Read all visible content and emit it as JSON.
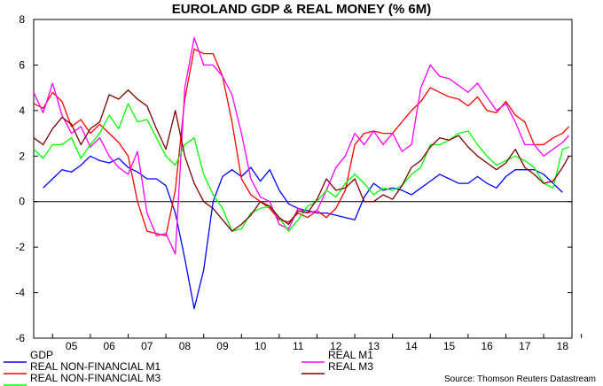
{
  "chart_data": {
    "type": "line",
    "title": "EUROLAND GDP & REAL MONEY (% 6M)",
    "xlabel": "",
    "ylabel": "",
    "ylim": [
      -6,
      8
    ],
    "yticks": [
      -6,
      -4,
      -2,
      0,
      2,
      4,
      6,
      8
    ],
    "xlim": [
      2004.5,
      2018.75
    ],
    "x_tick_labels": [
      "05",
      "06",
      "07",
      "08",
      "09",
      "10",
      "11",
      "12",
      "13",
      "14",
      "15",
      "16",
      "17",
      "18"
    ],
    "grid": false,
    "legend_position": "bottom",
    "source": "Source: Thomson Reuters Datastream",
    "series": [
      {
        "name": "GDP",
        "color": "#0000ff",
        "x": [
          2004.75,
          2005.0,
          2005.25,
          2005.5,
          2005.75,
          2006.0,
          2006.25,
          2006.5,
          2006.75,
          2007.0,
          2007.25,
          2007.5,
          2007.75,
          2008.0,
          2008.25,
          2008.5,
          2008.75,
          2009.0,
          2009.25,
          2009.5,
          2009.75,
          2010.0,
          2010.25,
          2010.5,
          2010.75,
          2011.0,
          2011.25,
          2011.5,
          2011.75,
          2012.0,
          2012.25,
          2012.5,
          2012.75,
          2013.0,
          2013.25,
          2013.5,
          2013.75,
          2014.0,
          2014.25,
          2014.5,
          2014.75,
          2015.0,
          2015.25,
          2015.5,
          2015.75,
          2016.0,
          2016.25,
          2016.5,
          2016.75,
          2017.0,
          2017.25,
          2017.5,
          2017.75,
          2018.0,
          2018.25,
          2018.5
        ],
        "y": [
          0.6,
          1.0,
          1.4,
          1.3,
          1.6,
          2.0,
          1.8,
          1.7,
          1.9,
          1.5,
          1.3,
          1.0,
          1.0,
          0.7,
          -0.5,
          -2.5,
          -4.7,
          -3.0,
          0.0,
          1.1,
          1.4,
          1.1,
          1.5,
          0.9,
          1.4,
          0.5,
          -0.1,
          -0.3,
          -0.4,
          -0.5,
          -0.5,
          -0.6,
          -0.7,
          -0.8,
          0.2,
          0.8,
          0.5,
          0.6,
          0.5,
          0.3,
          0.6,
          0.9,
          1.2,
          1.0,
          0.8,
          0.8,
          1.1,
          0.8,
          0.6,
          1.1,
          1.4,
          1.4,
          1.4,
          1.2,
          0.8,
          0.4
        ]
      },
      {
        "name": "REAL NON-FINANCIAL M1",
        "color": "#ff0000",
        "x": [
          2004.5,
          2004.75,
          2005.0,
          2005.25,
          2005.5,
          2005.75,
          2006.0,
          2006.25,
          2006.5,
          2006.75,
          2007.0,
          2007.25,
          2007.5,
          2007.75,
          2008.0,
          2008.25,
          2008.5,
          2008.75,
          2009.0,
          2009.25,
          2009.5,
          2009.75,
          2010.0,
          2010.25,
          2010.5,
          2010.75,
          2011.0,
          2011.25,
          2011.5,
          2011.75,
          2012.0,
          2012.25,
          2012.5,
          2012.75,
          2013.0,
          2013.25,
          2013.5,
          2013.75,
          2014.0,
          2014.25,
          2014.5,
          2014.75,
          2015.0,
          2015.25,
          2015.5,
          2015.75,
          2016.0,
          2016.25,
          2016.5,
          2016.75,
          2017.0,
          2017.25,
          2017.5,
          2017.75,
          2018.0,
          2018.25,
          2018.5,
          2018.67
        ],
        "y": [
          4.3,
          4.1,
          4.8,
          4.4,
          3.3,
          3.6,
          3.0,
          3.4,
          3.0,
          2.6,
          2.0,
          0.0,
          -1.3,
          -1.4,
          -1.5,
          0.5,
          4.5,
          6.7,
          6.5,
          6.5,
          5.5,
          3.5,
          1.0,
          0.3,
          0.0,
          -0.3,
          -0.8,
          -0.9,
          -0.5,
          -0.7,
          -0.4,
          -0.7,
          -0.3,
          0.5,
          2.5,
          3.0,
          3.1,
          3.0,
          3.0,
          3.5,
          4.0,
          4.4,
          5.0,
          4.8,
          4.6,
          4.5,
          4.2,
          4.6,
          4.0,
          3.9,
          4.4,
          3.8,
          3.5,
          2.5,
          2.5,
          2.8,
          3.0,
          3.3
        ]
      },
      {
        "name": "REAL M1",
        "color": "#ff00ff",
        "x": [
          2004.5,
          2004.75,
          2005.0,
          2005.25,
          2005.5,
          2005.75,
          2006.0,
          2006.25,
          2006.5,
          2006.75,
          2007.0,
          2007.25,
          2007.5,
          2007.75,
          2008.0,
          2008.25,
          2008.5,
          2008.75,
          2009.0,
          2009.25,
          2009.5,
          2009.75,
          2010.0,
          2010.25,
          2010.5,
          2010.75,
          2011.0,
          2011.25,
          2011.5,
          2011.75,
          2012.0,
          2012.25,
          2012.5,
          2012.75,
          2013.0,
          2013.25,
          2013.5,
          2013.75,
          2014.0,
          2014.25,
          2014.5,
          2014.75,
          2015.0,
          2015.25,
          2015.5,
          2015.75,
          2016.0,
          2016.25,
          2016.5,
          2016.75,
          2017.0,
          2017.25,
          2017.5,
          2017.75,
          2018.0,
          2018.25,
          2018.5,
          2018.67
        ],
        "y": [
          4.8,
          3.9,
          5.2,
          3.8,
          3.0,
          3.3,
          2.4,
          2.8,
          2.0,
          1.5,
          1.2,
          2.2,
          -0.5,
          -1.5,
          -1.4,
          -2.3,
          5.0,
          7.2,
          6.0,
          6.0,
          5.5,
          4.7,
          3.0,
          1.0,
          0.2,
          0.0,
          -1.0,
          -1.2,
          -0.3,
          -0.5,
          -0.4,
          0.5,
          1.5,
          2.0,
          3.0,
          2.5,
          3.1,
          2.5,
          3.0,
          2.2,
          2.5,
          5.0,
          6.0,
          5.5,
          5.4,
          5.1,
          4.8,
          5.2,
          4.6,
          4.0,
          4.3,
          3.5,
          2.5,
          2.5,
          2.0,
          2.3,
          2.6,
          2.9
        ]
      },
      {
        "name": "REAL NON-FINANCIAL M3",
        "color": "#00ff00",
        "x": [
          2004.5,
          2004.75,
          2005.0,
          2005.25,
          2005.5,
          2005.75,
          2006.0,
          2006.25,
          2006.5,
          2006.75,
          2007.0,
          2007.25,
          2007.5,
          2007.75,
          2008.0,
          2008.25,
          2008.5,
          2008.75,
          2009.0,
          2009.25,
          2009.5,
          2009.75,
          2010.0,
          2010.25,
          2010.5,
          2010.75,
          2011.0,
          2011.25,
          2011.5,
          2011.75,
          2012.0,
          2012.25,
          2012.5,
          2012.75,
          2013.0,
          2013.25,
          2013.5,
          2013.75,
          2014.0,
          2014.25,
          2014.5,
          2014.75,
          2015.0,
          2015.25,
          2015.5,
          2015.75,
          2016.0,
          2016.25,
          2016.5,
          2016.75,
          2017.0,
          2017.25,
          2017.5,
          2017.75,
          2018.0,
          2018.25,
          2018.5,
          2018.67
        ],
        "y": [
          2.3,
          1.9,
          2.5,
          2.5,
          2.8,
          1.9,
          2.5,
          3.0,
          3.8,
          3.2,
          4.3,
          3.5,
          3.6,
          2.8,
          2.0,
          1.6,
          2.5,
          2.8,
          1.2,
          0.3,
          -0.3,
          -1.3,
          -1.2,
          -0.5,
          -0.3,
          -0.2,
          -0.7,
          -1.3,
          -0.8,
          -0.2,
          0.0,
          0.5,
          0.2,
          0.8,
          1.2,
          0.8,
          0.3,
          0.6,
          0.5,
          0.7,
          1.2,
          1.5,
          2.5,
          2.5,
          2.7,
          3.0,
          3.1,
          2.5,
          2.0,
          1.6,
          1.8,
          2.0,
          1.8,
          1.5,
          0.8,
          0.6,
          2.3,
          2.4
        ]
      },
      {
        "name": "REAL M3",
        "color": "#800000",
        "x": [
          2004.5,
          2004.75,
          2005.0,
          2005.25,
          2005.5,
          2005.75,
          2006.0,
          2006.25,
          2006.5,
          2006.75,
          2007.0,
          2007.25,
          2007.5,
          2007.75,
          2008.0,
          2008.25,
          2008.5,
          2008.75,
          2009.0,
          2009.25,
          2009.5,
          2009.75,
          2010.0,
          2010.25,
          2010.5,
          2010.75,
          2011.0,
          2011.25,
          2011.5,
          2011.75,
          2012.0,
          2012.25,
          2012.5,
          2012.75,
          2013.0,
          2013.25,
          2013.5,
          2013.75,
          2014.0,
          2014.25,
          2014.5,
          2014.75,
          2015.0,
          2015.25,
          2015.5,
          2015.75,
          2016.0,
          2016.25,
          2016.5,
          2016.75,
          2017.0,
          2017.25,
          2017.5,
          2017.75,
          2018.0,
          2018.25,
          2018.5,
          2018.67
        ],
        "y": [
          2.8,
          2.5,
          3.2,
          3.7,
          3.4,
          2.5,
          3.2,
          3.5,
          4.7,
          4.5,
          4.9,
          4.5,
          4.2,
          3.2,
          2.3,
          4.0,
          2.0,
          0.8,
          0.0,
          -0.3,
          -0.8,
          -1.3,
          -1.0,
          -0.6,
          0.0,
          -0.2,
          -0.7,
          -1.0,
          -0.4,
          -0.5,
          0.1,
          1.0,
          0.5,
          0.6,
          1.0,
          0.0,
          0.0,
          0.3,
          0.1,
          0.7,
          1.5,
          1.8,
          2.4,
          2.8,
          2.7,
          2.9,
          2.4,
          2.0,
          1.7,
          1.4,
          1.7,
          2.3,
          1.5,
          1.2,
          0.8,
          0.9,
          1.5,
          2.0
        ]
      }
    ]
  }
}
